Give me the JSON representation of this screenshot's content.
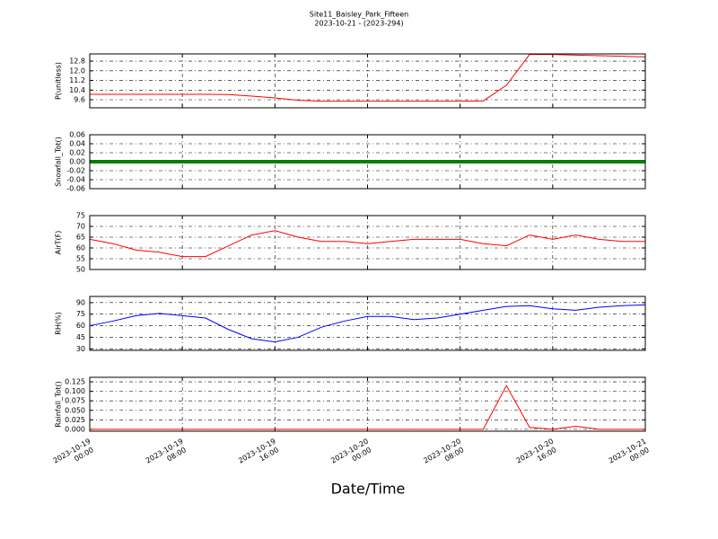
{
  "title": "Site11_Baisley_Park_Fifteen",
  "subtitle": "2023-10-21 - (2023-294)",
  "xlabel": "Date/Time",
  "chart_data": [
    {
      "type": "line",
      "ylabel": "P(unitless)",
      "x": [
        "2023-10-19 00:00",
        "2023-10-19 02:00",
        "2023-10-19 04:00",
        "2023-10-19 06:00",
        "2023-10-19 08:00",
        "2023-10-19 10:00",
        "2023-10-19 12:00",
        "2023-10-19 14:00",
        "2023-10-19 16:00",
        "2023-10-19 18:00",
        "2023-10-19 20:00",
        "2023-10-19 22:00",
        "2023-10-20 00:00",
        "2023-10-20 02:00",
        "2023-10-20 04:00",
        "2023-10-20 06:00",
        "2023-10-20 08:00",
        "2023-10-20 10:00",
        "2023-10-20 12:00",
        "2023-10-20 14:00",
        "2023-10-20 16:00",
        "2023-10-20 18:00",
        "2023-10-20 20:00",
        "2023-10-20 22:00",
        "2023-10-21 00:00"
      ],
      "values": [
        10.05,
        10.05,
        10.05,
        10.05,
        10.05,
        10.05,
        10.03,
        9.9,
        9.75,
        9.55,
        9.48,
        9.48,
        9.48,
        9.48,
        9.48,
        9.48,
        9.48,
        9.5,
        10.8,
        13.35,
        13.35,
        13.3,
        13.25,
        13.2,
        13.15
      ],
      "color": "#ff0000",
      "xlim": [
        "2023-10-19 00:00",
        "2023-10-21 00:00"
      ],
      "ylim": [
        8.93,
        13.4
      ],
      "yticks": [
        9.6,
        10.4,
        11.2,
        {
          "value": 12,
          "label": "12.0"
        },
        12.8
      ],
      "grid": true
    },
    {
      "type": "line",
      "ylabel": "Snowfall_Tot()",
      "x": [
        "2023-10-19 00:00",
        "2023-10-19 02:00",
        "2023-10-19 04:00",
        "2023-10-19 06:00",
        "2023-10-19 08:00",
        "2023-10-19 10:00",
        "2023-10-19 12:00",
        "2023-10-19 14:00",
        "2023-10-19 16:00",
        "2023-10-19 18:00",
        "2023-10-19 20:00",
        "2023-10-19 22:00",
        "2023-10-20 00:00",
        "2023-10-20 02:00",
        "2023-10-20 04:00",
        "2023-10-20 06:00",
        "2023-10-20 08:00",
        "2023-10-20 10:00",
        "2023-10-20 12:00",
        "2023-10-20 14:00",
        "2023-10-20 16:00",
        "2023-10-20 18:00",
        "2023-10-20 20:00",
        "2023-10-20 22:00",
        "2023-10-21 00:00"
      ],
      "values": [
        0,
        0,
        0,
        0,
        0,
        0,
        0,
        0,
        0,
        0,
        0,
        0,
        0,
        0,
        0,
        0,
        0,
        0,
        0,
        0,
        0,
        0,
        0,
        0,
        0
      ],
      "color": "#008000",
      "xlim": [
        "2023-10-19 00:00",
        "2023-10-21 00:00"
      ],
      "ylim": [
        -0.06,
        0.06
      ],
      "yticks": [
        -0.06,
        -0.04,
        -0.02,
        {
          "value": 0,
          "label": "0.00"
        },
        0.02,
        0.04,
        0.06
      ],
      "grid": true
    },
    {
      "type": "line",
      "ylabel": "AirT(F)",
      "x": [
        "2023-10-19 00:00",
        "2023-10-19 02:00",
        "2023-10-19 04:00",
        "2023-10-19 06:00",
        "2023-10-19 08:00",
        "2023-10-19 10:00",
        "2023-10-19 12:00",
        "2023-10-19 14:00",
        "2023-10-19 16:00",
        "2023-10-19 18:00",
        "2023-10-19 20:00",
        "2023-10-19 22:00",
        "2023-10-20 00:00",
        "2023-10-20 02:00",
        "2023-10-20 04:00",
        "2023-10-20 06:00",
        "2023-10-20 08:00",
        "2023-10-20 10:00",
        "2023-10-20 12:00",
        "2023-10-20 14:00",
        "2023-10-20 16:00",
        "2023-10-20 18:00",
        "2023-10-20 20:00",
        "2023-10-20 22:00",
        "2023-10-21 00:00"
      ],
      "values": [
        64,
        62,
        59,
        58,
        56,
        56,
        61,
        66,
        68,
        65,
        63,
        63,
        62,
        63,
        64,
        64,
        64,
        62,
        61,
        66,
        64,
        66,
        64,
        63,
        63
      ],
      "color": "#ff0000",
      "xlim": [
        "2023-10-19 00:00",
        "2023-10-21 00:00"
      ],
      "ylim": [
        50,
        75
      ],
      "yticks": [
        50,
        55,
        60,
        65,
        70,
        75
      ],
      "grid": true
    },
    {
      "type": "line",
      "ylabel": "RH(%)",
      "x": [
        "2023-10-19 00:00",
        "2023-10-19 02:00",
        "2023-10-19 04:00",
        "2023-10-19 06:00",
        "2023-10-19 08:00",
        "2023-10-19 10:00",
        "2023-10-19 12:00",
        "2023-10-19 14:00",
        "2023-10-19 16:00",
        "2023-10-19 18:00",
        "2023-10-19 20:00",
        "2023-10-19 22:00",
        "2023-10-20 00:00",
        "2023-10-20 02:00",
        "2023-10-20 04:00",
        "2023-10-20 06:00",
        "2023-10-20 08:00",
        "2023-10-20 10:00",
        "2023-10-20 12:00",
        "2023-10-20 14:00",
        "2023-10-20 16:00",
        "2023-10-20 18:00",
        "2023-10-20 20:00",
        "2023-10-20 22:00",
        "2023-10-21 00:00"
      ],
      "values": [
        60,
        66,
        73,
        76,
        73,
        70,
        55,
        43,
        39,
        45,
        58,
        66,
        72,
        72,
        68,
        70,
        75,
        80,
        85,
        86,
        82,
        80,
        84,
        86,
        87
      ],
      "color": "#0000ff",
      "xlim": [
        "2023-10-19 00:00",
        "2023-10-21 00:00"
      ],
      "ylim": [
        28,
        98
      ],
      "yticks": [
        30,
        45,
        60,
        75,
        90
      ],
      "grid": true
    },
    {
      "type": "line",
      "ylabel": "Rainfall_Tot()",
      "x": [
        "2023-10-19 00:00",
        "2023-10-19 02:00",
        "2023-10-19 04:00",
        "2023-10-19 06:00",
        "2023-10-19 08:00",
        "2023-10-19 10:00",
        "2023-10-19 12:00",
        "2023-10-19 14:00",
        "2023-10-19 16:00",
        "2023-10-19 18:00",
        "2023-10-19 20:00",
        "2023-10-19 22:00",
        "2023-10-20 00:00",
        "2023-10-20 02:00",
        "2023-10-20 04:00",
        "2023-10-20 06:00",
        "2023-10-20 08:00",
        "2023-10-20 10:00",
        "2023-10-20 12:00",
        "2023-10-20 14:00",
        "2023-10-20 16:00",
        "2023-10-20 18:00",
        "2023-10-20 20:00",
        "2023-10-20 22:00",
        "2023-10-21 00:00"
      ],
      "values": [
        0,
        0,
        0,
        0,
        0,
        0,
        0,
        0,
        0,
        0,
        0,
        0,
        0,
        0,
        0,
        0,
        0,
        0,
        0.115,
        0.005,
        0,
        0.008,
        0,
        0,
        0
      ],
      "color": "#ff0000",
      "xlim": [
        "2023-10-19 00:00",
        "2023-10-21 00:00"
      ],
      "ylim": [
        -0.005,
        0.137
      ],
      "yticks": [
        {
          "value": 0,
          "label": "0.000"
        },
        0.025,
        {
          "value": 0.05,
          "label": "0.050"
        },
        0.075,
        {
          "value": 0.1,
          "label": "0.100"
        },
        0.125
      ],
      "xticks": [
        "2023-10-19 00:00",
        "2023-10-19 08:00",
        "2023-10-19 16:00",
        "2023-10-20 00:00",
        "2023-10-20 08:00",
        "2023-10-20 16:00",
        "2023-10-21 00:00"
      ],
      "grid": true
    }
  ]
}
